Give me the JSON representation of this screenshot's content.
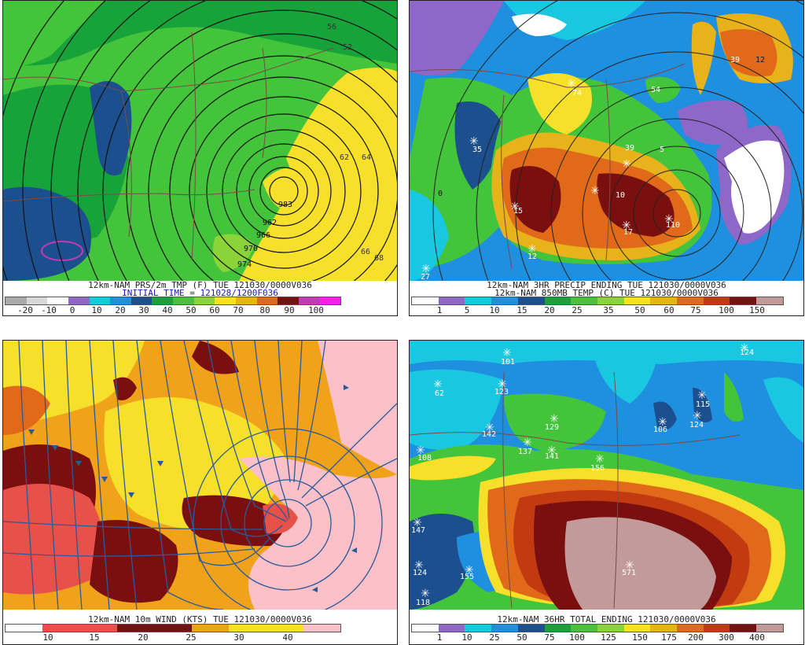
{
  "panels": {
    "tl": {
      "title1": "12km-NAM PRS/2m TMP (F) TUE 121030/0000V036",
      "title2": "INITIAL TIME = 121028/1200F036",
      "scale_colors": [
        "#aaaaaa",
        "#d8d8d8",
        "#ffffff",
        "#8e67c9",
        "#19c8e0",
        "#1f8fe0",
        "#1c4f8e",
        "#18a33a",
        "#43c43a",
        "#8ad339",
        "#f7e02a",
        "#e8b31a",
        "#e06a1a",
        "#7a0f0f",
        "#c43ab4",
        "#ee22ee"
      ],
      "scale_labels": [
        "-20",
        "-10",
        "0",
        "10",
        "20",
        "30",
        "40",
        "50",
        "60",
        "70",
        "80",
        "90",
        "100"
      ],
      "map_labels": {
        "low_center": "983",
        "l1": "962",
        "l2": "966",
        "l3": "970",
        "l4": "974",
        "l5": "62",
        "l6": "64",
        "l7": "66",
        "l8": "68",
        "l9": "56",
        "l10": "52"
      }
    },
    "tr": {
      "title1": "12km-NAM 3HR PRECIP ENDING TUE 121030/0000V036",
      "title2": "12km-NAM 850MB TEMP (C) TUE 121030/0000V036",
      "scale_colors": [
        "#ffffff",
        "#8e67c9",
        "#19c8e0",
        "#1f8fe0",
        "#1c4f8e",
        "#18a33a",
        "#43c43a",
        "#8ad339",
        "#f7e02a",
        "#e8b31a",
        "#e06a1a",
        "#c23a10",
        "#7a0f0f",
        "#c29a9a"
      ],
      "scale_labels": [
        "1",
        "5",
        "10",
        "15",
        "20",
        "25",
        "35",
        "50",
        "60",
        "75",
        "100",
        "150"
      ],
      "map_labels": {
        "s1": "74",
        "s2": "35",
        "s3": "39",
        "s4": "5",
        "s5": "54",
        "s6": "10",
        "s7": "17",
        "s8": "15",
        "s9": "27",
        "s10": "110",
        "s11": "12",
        "s12": "0",
        "s13": "39",
        "s14": "12"
      }
    },
    "bl": {
      "title1": "12km-NAM 10m WIND (KTS) TUE 121030/0000V036",
      "scale_colors": [
        "#ffffff",
        "#e8514a",
        "#e8514a",
        "#7a0f0f",
        "#7a0f0f",
        "#f0a21a",
        "#f7e02a",
        "#f7e02a",
        "#fcc0c8"
      ],
      "scale_labels": [
        "10",
        "15",
        "20",
        "25",
        "30",
        "40"
      ]
    },
    "br": {
      "title1": "12km-NAM 36HR TOTAL ENDING 121030/0000V036",
      "scale_colors": [
        "#ffffff",
        "#8e67c9",
        "#19c8e0",
        "#1f8fe0",
        "#1c4f8e",
        "#18a33a",
        "#43c43a",
        "#8ad339",
        "#f7e02a",
        "#e8b31a",
        "#e06a1a",
        "#c23a10",
        "#7a0f0f",
        "#c29a9a"
      ],
      "scale_labels": [
        "1",
        "10",
        "25",
        "50",
        "75",
        "100",
        "125",
        "150",
        "175",
        "200",
        "300",
        "400"
      ],
      "map_labels": {
        "s1": "101",
        "s2": "62",
        "s3": "123",
        "s4": "129",
        "s5": "137",
        "s6": "141",
        "s7": "156",
        "s8": "106",
        "s9": "115",
        "s10": "124",
        "s11": "147",
        "s12": "124",
        "s13": "155",
        "s14": "118",
        "s15": "571",
        "s16": "108",
        "s17": "142",
        "s18": "124"
      }
    }
  }
}
